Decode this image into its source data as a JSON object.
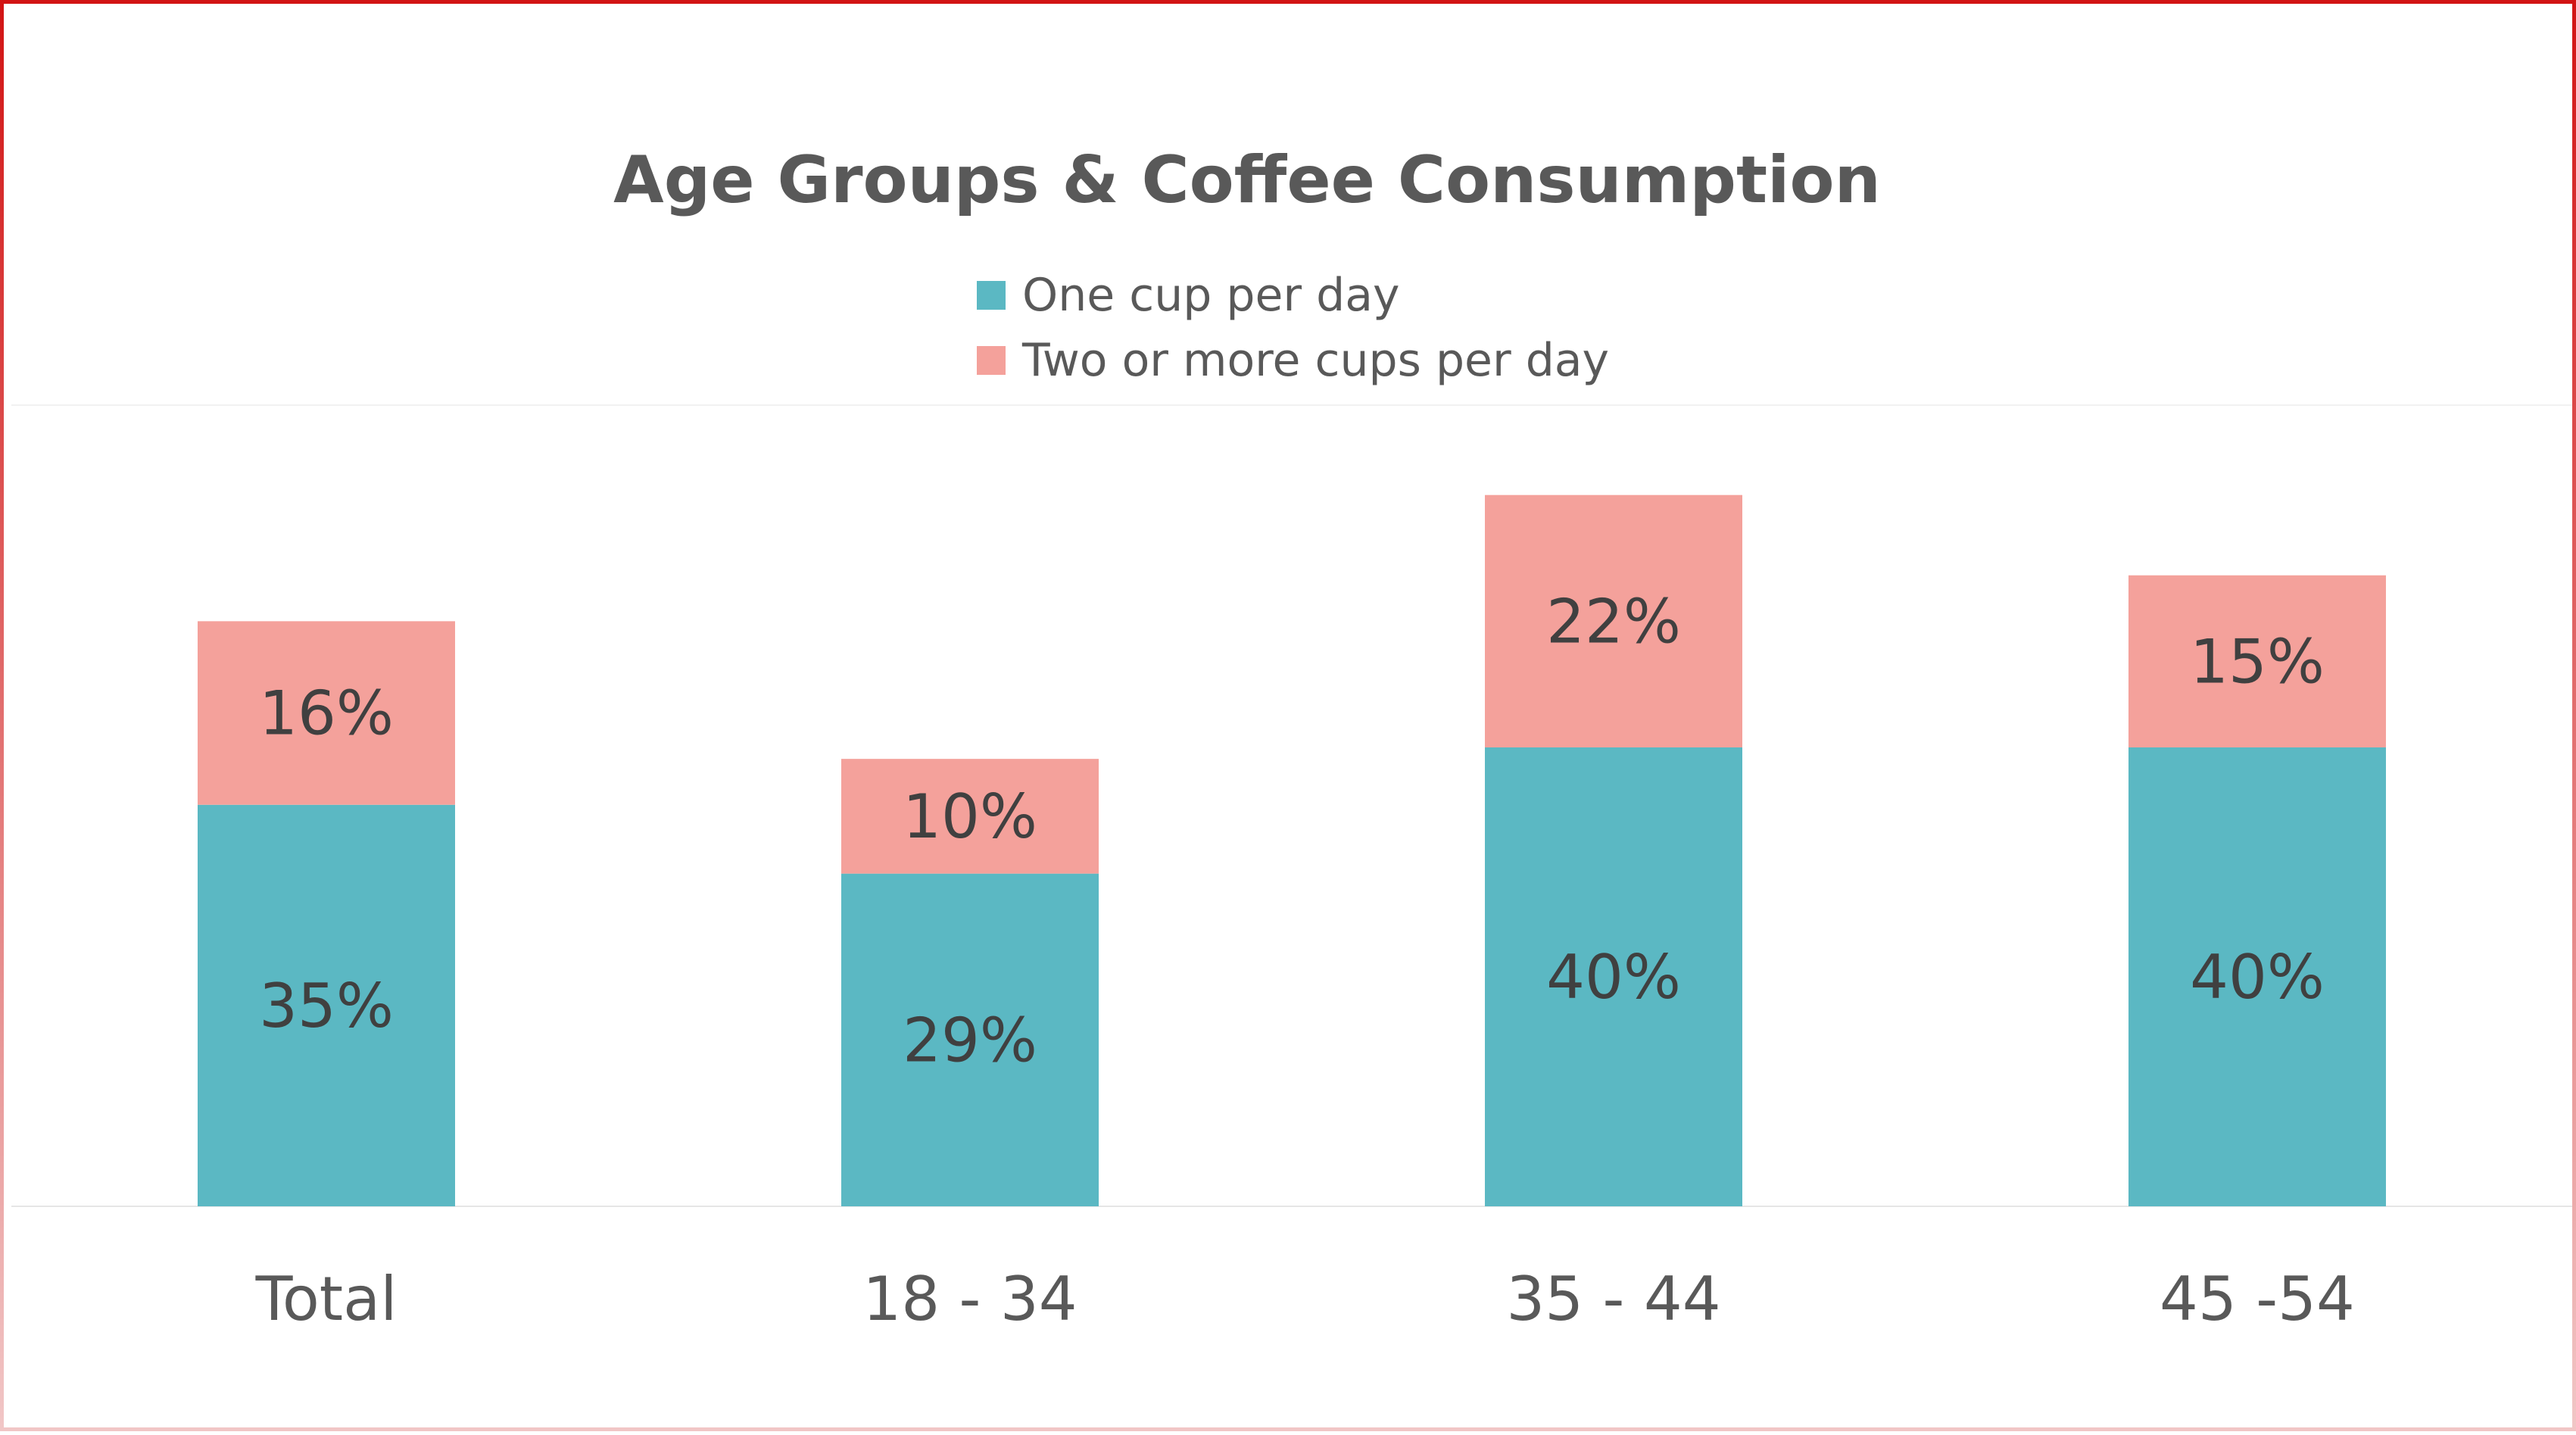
{
  "chart_data": {
    "type": "bar",
    "stacked": true,
    "title": "Age Groups & Coffee Consumption",
    "categories": [
      "Total",
      "18 - 34",
      "35 - 44",
      "45 -54"
    ],
    "series": [
      {
        "name": "One cup per day",
        "color": "#5bb8c3",
        "values": [
          35,
          29,
          40,
          40
        ],
        "labels": [
          "35%",
          "29%",
          "40%",
          "40%"
        ]
      },
      {
        "name": "Two or more cups per day",
        "color": "#f4a19b",
        "values": [
          16,
          10,
          22,
          15
        ],
        "labels": [
          "16%",
          "10%",
          "22%",
          "15%"
        ]
      }
    ],
    "ylim": [
      0,
      70
    ],
    "grid": false,
    "legend_position": "top"
  }
}
